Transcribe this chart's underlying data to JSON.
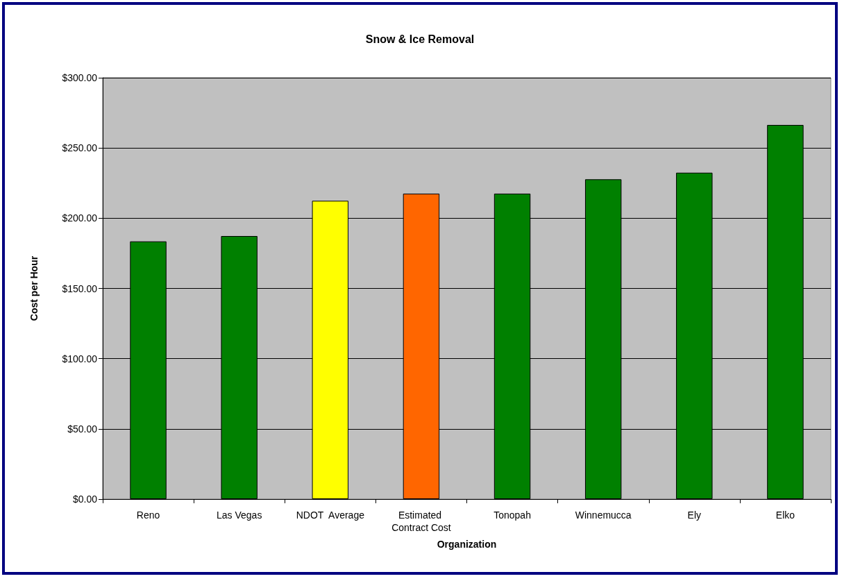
{
  "chart_data": {
    "type": "bar",
    "title": "Snow & Ice Removal",
    "xlabel": "Organization",
    "ylabel": "Cost per Hour",
    "categories": [
      "Reno",
      "Las Vegas",
      "NDOT  Average",
      "Estimated Contract Cost",
      "Tonopah",
      "Winnemucca",
      "Ely",
      "Elko"
    ],
    "values": [
      183.5,
      187.3,
      212.4,
      217.5,
      217.5,
      227.7,
      232.4,
      266.4
    ],
    "colors": [
      "#008000",
      "#008000",
      "#ffff00",
      "#ff6600",
      "#008000",
      "#008000",
      "#008000",
      "#008000"
    ],
    "ylim": [
      0,
      300
    ],
    "yticks": [
      {
        "value": 0,
        "label": "$0.00"
      },
      {
        "value": 50,
        "label": "$50.00"
      },
      {
        "value": 100,
        "label": "$100.00"
      },
      {
        "value": 150,
        "label": "$150.00"
      },
      {
        "value": 200,
        "label": "$200.00"
      },
      {
        "value": 250,
        "label": "$250.00"
      },
      {
        "value": 300,
        "label": "$300.00"
      }
    ],
    "grid": "y"
  }
}
